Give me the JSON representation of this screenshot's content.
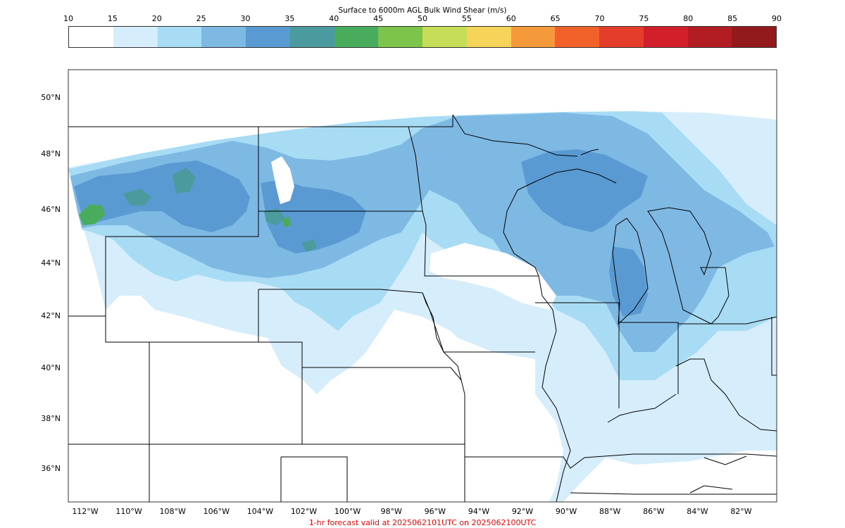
{
  "colorbar": {
    "title": "Surface to 6000m AGL Bulk Wind Shear (m/s)",
    "ticks": [
      "10",
      "15",
      "20",
      "25",
      "30",
      "35",
      "40",
      "45",
      "50",
      "55",
      "60",
      "65",
      "70",
      "75",
      "80",
      "85",
      "90"
    ],
    "colors": [
      "#ffffff",
      "#d6eefb",
      "#a8dcf5",
      "#7eb9e4",
      "#5a9ad3",
      "#4a9a9e",
      "#48ac5c",
      "#7cc44a",
      "#c6dd5a",
      "#f6d45a",
      "#f59a3a",
      "#f1622a",
      "#e43e2a",
      "#d31f2a",
      "#b21d23",
      "#921a1c"
    ]
  },
  "map": {
    "lat_labels": [
      "50°N",
      "48°N",
      "46°N",
      "44°N",
      "42°N",
      "40°N",
      "38°N",
      "36°N"
    ],
    "lon_labels": [
      "112°W",
      "110°W",
      "108°W",
      "106°W",
      "104°W",
      "102°W",
      "100°W",
      "98°W",
      "96°W",
      "94°W",
      "92°W",
      "90°W",
      "88°W",
      "86°W",
      "84°W",
      "82°W"
    ],
    "field_colors": {
      "light": "#d6eefb",
      "mid": "#a8dcf5",
      "blue": "#7eb9e4",
      "dark": "#5a9ad3",
      "teal": "#4a9a9e",
      "green": "#48ac5c"
    }
  },
  "footer": {
    "text": "1-hr forecast valid at 2025062101UTC on 2025062100UTC",
    "color": "#ff0000"
  }
}
